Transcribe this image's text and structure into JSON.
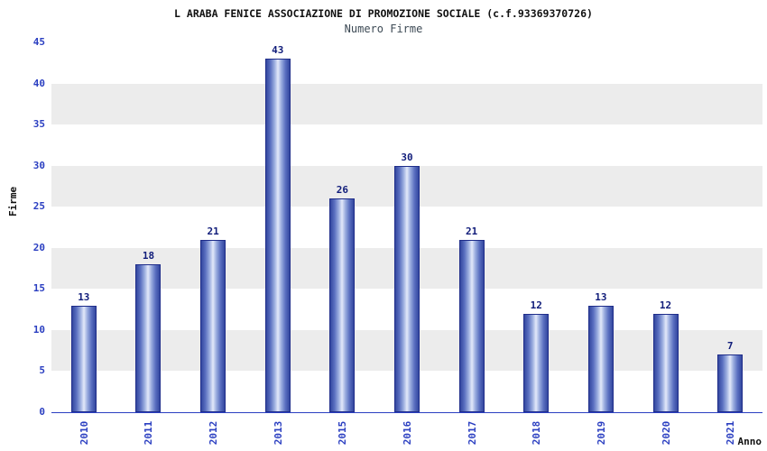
{
  "chart_data": {
    "type": "bar",
    "title": "L ARABA FENICE ASSOCIAZIONE DI PROMOZIONE SOCIALE (c.f.93369370726)",
    "subtitle": "Numero Firme",
    "xlabel": "Anno",
    "ylabel": "Firme",
    "categories": [
      "2010",
      "2011",
      "2012",
      "2013",
      "2015",
      "2016",
      "2017",
      "2018",
      "2019",
      "2020",
      "2021"
    ],
    "values": [
      13,
      18,
      21,
      43,
      26,
      30,
      21,
      12,
      13,
      12,
      7
    ],
    "ylim": [
      0,
      45
    ],
    "ytick_step": 5,
    "yticks": [
      0,
      5,
      10,
      15,
      20,
      25,
      30,
      35,
      40,
      45
    ],
    "legend": "none",
    "grid": "alternating-horizontal-bands",
    "colors": {
      "band_white": "#ffffff",
      "band_gray": "#ececec",
      "bar_edge": "#1f2d8a",
      "bar_dark": "#33479f",
      "bar_light": "#e3e9f9",
      "axis_text": "#2b3fc1",
      "value_label": "#101c7a",
      "axis_line": "#2b3fc1",
      "title_text": "#111111",
      "subtitle_text": "#3d4a55"
    }
  }
}
